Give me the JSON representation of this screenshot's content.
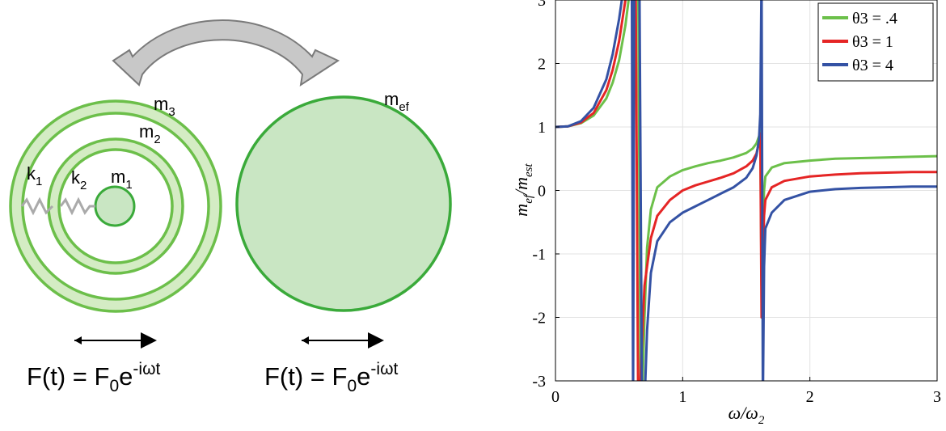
{
  "diagram": {
    "labels": {
      "m1": "m",
      "m1_sub": "1",
      "m2": "m",
      "m2_sub": "2",
      "m3": "m",
      "m3_sub": "3",
      "k1": "k",
      "k1_sub": "1",
      "k2": "k",
      "k2_sub": "2",
      "mef": "m",
      "mef_sub": "ef"
    },
    "force": {
      "left": {
        "base": "F(t) = F",
        "sub": "0",
        "e": "e",
        "exp": "-iωt"
      },
      "right": {
        "base": "F(t) = F",
        "sub": "0",
        "e": "e",
        "exp": "-iωt"
      }
    },
    "colors": {
      "ring_fill": "#d4ecc4",
      "ring_stroke": "#6cbf4a",
      "mef_fill": "#c9e6c3",
      "mef_stroke": "#3aaa3a",
      "spring": "#aaaaaa",
      "arrow_fill": "#c8c8c8",
      "arrow_stroke": "#7a7a7a"
    }
  },
  "chart_data": {
    "type": "line",
    "xlabel": "ω/ω",
    "xlabel_sub": "2",
    "ylabel": "m",
    "ylabel_sub1": "ef",
    "ylabel_mid": "/m",
    "ylabel_sub2": "est",
    "xlim": [
      0,
      3
    ],
    "ylim": [
      -3,
      3
    ],
    "x_ticks": [
      0,
      1,
      2,
      3
    ],
    "x_tick_labels": [
      "0",
      "1",
      "2",
      "3"
    ],
    "y_ticks": [
      -3,
      -2,
      -1,
      0,
      1,
      2,
      3
    ],
    "y_tick_labels": [
      "-3",
      "-2",
      "-1",
      "0",
      "1",
      "2",
      "3"
    ],
    "grid": true,
    "legend_position": "top-right",
    "series": [
      {
        "name": "θ3 = .4",
        "color": "#6cc04a",
        "x": [
          0,
          0.1,
          0.2,
          0.3,
          0.4,
          0.45,
          0.5,
          0.55,
          0.6,
          0.65,
          0.67,
          0.68,
          0.7,
          0.72,
          0.75,
          0.8,
          0.9,
          1.0,
          1.1,
          1.2,
          1.3,
          1.4,
          1.5,
          1.55,
          1.58,
          1.6,
          1.61,
          1.62,
          1.63,
          1.64,
          1.65,
          1.7,
          1.8,
          2.0,
          2.2,
          2.4,
          2.6,
          2.8,
          3.0
        ],
        "y": [
          1.0,
          1.01,
          1.06,
          1.18,
          1.45,
          1.7,
          2.05,
          2.6,
          3.4,
          3.4,
          -3.4,
          -3.4,
          -2.0,
          -0.9,
          -0.3,
          0.05,
          0.22,
          0.32,
          0.38,
          0.43,
          0.47,
          0.52,
          0.59,
          0.66,
          0.74,
          0.85,
          0.95,
          -1.5,
          -0.5,
          0.0,
          0.22,
          0.36,
          0.43,
          0.47,
          0.5,
          0.51,
          0.52,
          0.53,
          0.54
        ]
      },
      {
        "name": "θ3 = 1",
        "color": "#e52525",
        "x": [
          0,
          0.1,
          0.2,
          0.3,
          0.4,
          0.45,
          0.5,
          0.55,
          0.6,
          0.63,
          0.65,
          0.66,
          0.68,
          0.7,
          0.75,
          0.8,
          0.9,
          1.0,
          1.1,
          1.2,
          1.3,
          1.4,
          1.5,
          1.55,
          1.58,
          1.6,
          1.61,
          1.62,
          1.63,
          1.64,
          1.65,
          1.7,
          1.8,
          2.0,
          2.2,
          2.4,
          2.6,
          2.8,
          3.0
        ],
        "y": [
          1.0,
          1.01,
          1.07,
          1.22,
          1.58,
          1.9,
          2.35,
          3.0,
          3.4,
          3.4,
          -3.4,
          -3.4,
          -2.4,
          -1.5,
          -0.75,
          -0.4,
          -0.15,
          0.0,
          0.08,
          0.14,
          0.2,
          0.27,
          0.38,
          0.47,
          0.58,
          0.75,
          0.9,
          -2.0,
          -1.0,
          -0.4,
          -0.15,
          0.05,
          0.15,
          0.22,
          0.25,
          0.27,
          0.28,
          0.29,
          0.29
        ]
      },
      {
        "name": "θ3 = 4",
        "color": "#3452a4",
        "x": [
          0,
          0.1,
          0.2,
          0.3,
          0.4,
          0.45,
          0.5,
          0.55,
          0.58,
          0.6,
          0.61,
          0.62,
          0.64,
          0.66,
          0.68,
          0.7,
          0.72,
          0.75,
          0.8,
          0.9,
          1.0,
          1.1,
          1.2,
          1.3,
          1.4,
          1.5,
          1.55,
          1.58,
          1.6,
          1.61,
          1.62,
          1.63,
          1.64,
          1.65,
          1.7,
          1.8,
          2.0,
          2.2,
          2.4,
          2.6,
          2.8,
          3.0
        ],
        "y": [
          1.0,
          1.01,
          1.09,
          1.3,
          1.75,
          2.15,
          2.7,
          3.4,
          3.4,
          3.4,
          -3.4,
          3.4,
          3.4,
          3.4,
          -3.4,
          -3.4,
          -2.2,
          -1.3,
          -0.8,
          -0.5,
          -0.35,
          -0.25,
          -0.15,
          -0.05,
          0.05,
          0.2,
          0.35,
          0.55,
          0.8,
          1.2,
          3.4,
          -3.4,
          -1.2,
          -0.6,
          -0.35,
          -0.15,
          -0.02,
          0.02,
          0.04,
          0.05,
          0.06,
          0.06
        ]
      }
    ]
  }
}
